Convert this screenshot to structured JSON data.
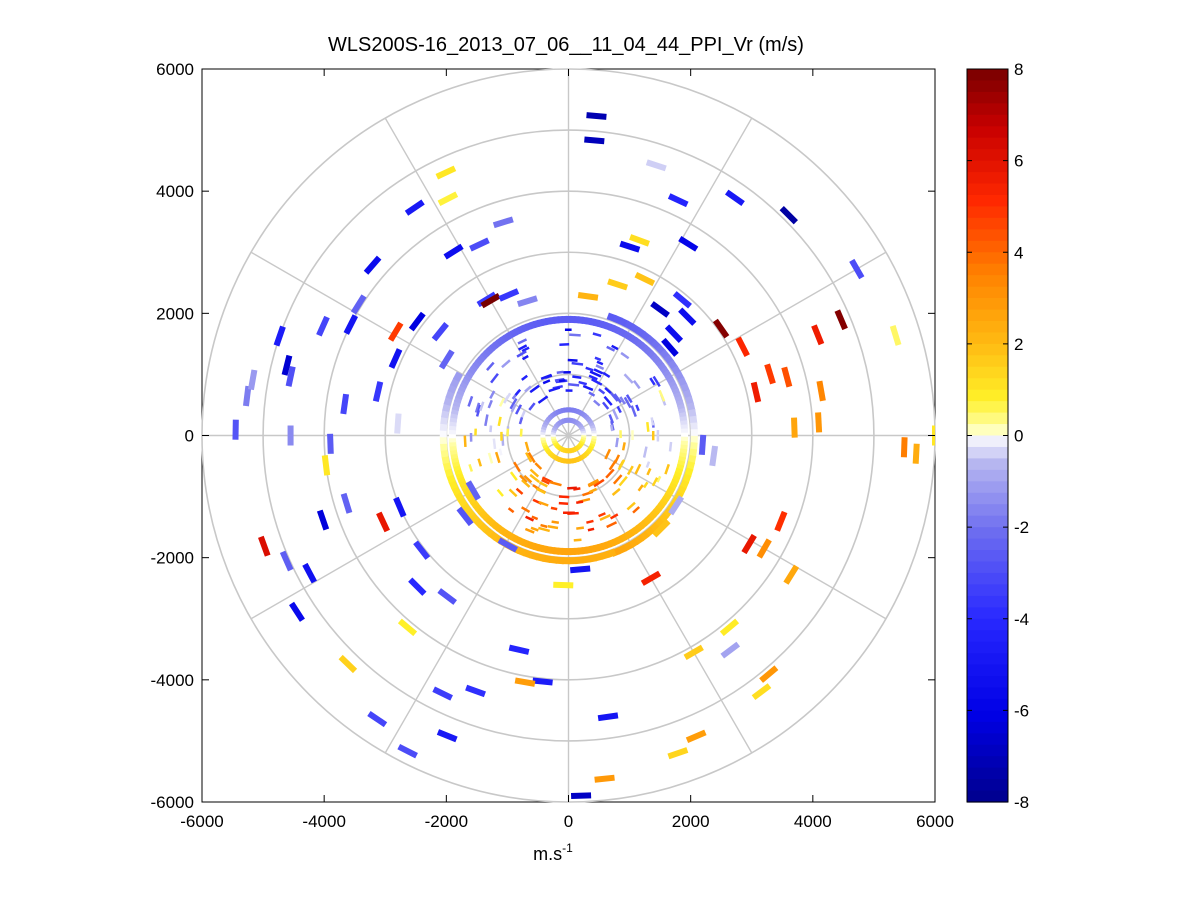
{
  "chart_data": {
    "type": "scatter",
    "subtype": "polar-ppi-radial-velocity",
    "title": "WLS200S-16_2013_07_06__11_04_44_PPI_Vr (m/s)",
    "xlabel_base": "m.s",
    "xlabel_exponent": "-1",
    "ylabel": "",
    "xlim": [
      -6000,
      6000
    ],
    "ylim": [
      -6000,
      6000
    ],
    "x_ticks": [
      -6000,
      -4000,
      -2000,
      0,
      2000,
      4000,
      6000
    ],
    "y_ticks": [
      6000,
      4000,
      2000,
      0,
      -2000,
      -4000,
      -6000
    ],
    "x_tick_labels": [
      "-6000",
      "-4000",
      "-2000",
      "0",
      "2000",
      "4000",
      "6000"
    ],
    "y_tick_labels": [
      "6000",
      "4000",
      "2000",
      "0",
      "-2000",
      "-4000",
      "-6000"
    ],
    "range_rings": [
      1000,
      2000,
      3000,
      4000,
      5000,
      6000
    ],
    "spokes_deg": [
      0,
      30,
      60,
      90,
      120,
      150,
      180,
      210,
      240,
      270,
      300,
      330
    ],
    "colorbar": {
      "min": -8,
      "max": 8,
      "ticks": [
        8,
        6,
        4,
        2,
        0,
        -2,
        -4,
        -6,
        -8
      ],
      "tick_labels": [
        "8",
        "6",
        "4",
        "2",
        "0",
        "-2",
        "-4",
        "-6",
        "-8"
      ]
    },
    "rings": [
      {
        "r": 1900,
        "az_from": 0,
        "az_to": 360,
        "gate_step_deg": 2,
        "pattern": "sine",
        "amplitude": -2.6,
        "phase_deg": 0
      },
      {
        "r": 2060,
        "az_from": 20,
        "az_to": 160,
        "gate_step_deg": 3,
        "pattern": "sine",
        "amplitude": -2.8,
        "phase_deg": 0
      },
      {
        "r": 2050,
        "az_from": 160,
        "az_to": 300,
        "gate_step_deg": 3,
        "pattern": "sine",
        "amplitude": -2.4,
        "phase_deg": 0
      },
      {
        "r": 420,
        "az_from": 0,
        "az_to": 360,
        "gate_step_deg": 6,
        "pattern": "sine",
        "amplitude": -1.8,
        "phase_deg": 0
      },
      {
        "r": 250,
        "az_from": 0,
        "az_to": 360,
        "gate_step_deg": 8,
        "pattern": "sine",
        "amplitude": -1.5,
        "phase_deg": 0
      }
    ],
    "bins": [
      {
        "r": 5250,
        "az": 5,
        "v": -7.2
      },
      {
        "r": 4850,
        "az": 5,
        "v": -7.0
      },
      {
        "r": 4650,
        "az": 18,
        "v": -0.4
      },
      {
        "r": 4250,
        "az": 25,
        "v": -4.2
      },
      {
        "r": 4750,
        "az": 35,
        "v": -4.8
      },
      {
        "r": 5100,
        "az": 45,
        "v": -7.5
      },
      {
        "r": 3250,
        "az": 18,
        "v": -5.5
      },
      {
        "r": 3400,
        "az": 20,
        "v": 1.2
      },
      {
        "r": 3700,
        "az": 32,
        "v": -5.8
      },
      {
        "r": 2900,
        "az": 40,
        "v": -3.8
      },
      {
        "r": 2550,
        "az": 36,
        "v": -6.8
      },
      {
        "r": 3050,
        "az": 55,
        "v": 7.8
      },
      {
        "r": 3200,
        "az": 63,
        "v": 5.2
      },
      {
        "r": 3450,
        "az": 73,
        "v": 4.8
      },
      {
        "r": 3150,
        "az": 77,
        "v": 5.6
      },
      {
        "r": 3700,
        "az": 75,
        "v": 4.4
      },
      {
        "r": 4200,
        "az": 80,
        "v": 3.4
      },
      {
        "r": 4400,
        "az": 68,
        "v": 5.6
      },
      {
        "r": 4850,
        "az": 67,
        "v": 7.8
      },
      {
        "r": 5600,
        "az": 73,
        "v": 0.5
      },
      {
        "r": 5450,
        "az": 60,
        "v": -3.0
      },
      {
        "r": 4100,
        "az": 87,
        "v": 3.0
      },
      {
        "r": 3700,
        "az": 88,
        "v": 2.6
      },
      {
        "r": 5700,
        "az": 93,
        "v": 2.4
      },
      {
        "r": 5500,
        "az": 92,
        "v": 3.6
      },
      {
        "r": 6000,
        "az": 90,
        "v": 1.0
      },
      {
        "r": 3750,
        "az": 112,
        "v": 5.0
      },
      {
        "r": 3450,
        "az": 121,
        "v": 5.8
      },
      {
        "r": 3700,
        "az": 120,
        "v": 3.2
      },
      {
        "r": 4300,
        "az": 122,
        "v": 2.5
      },
      {
        "r": 4100,
        "az": 140,
        "v": 0.9
      },
      {
        "r": 5100,
        "az": 140,
        "v": 3.0
      },
      {
        "r": 5250,
        "az": 143,
        "v": 1.2
      },
      {
        "r": 4400,
        "az": 143,
        "v": -1.0
      },
      {
        "r": 4100,
        "az": 150,
        "v": 1.6
      },
      {
        "r": 4650,
        "az": 172,
        "v": -5.0
      },
      {
        "r": 5650,
        "az": 174,
        "v": 2.9
      },
      {
        "r": 5350,
        "az": 157,
        "v": 2.8
      },
      {
        "r": 5500,
        "az": 161,
        "v": 1.4
      },
      {
        "r": 5900,
        "az": 178,
        "v": -6.8
      },
      {
        "r": 4050,
        "az": 186,
        "v": -4.6
      },
      {
        "r": 3600,
        "az": 193,
        "v": -4.2
      },
      {
        "r": 4450,
        "az": 200,
        "v": -3.8
      },
      {
        "r": 4700,
        "az": 206,
        "v": -3.4
      },
      {
        "r": 5300,
        "az": 202,
        "v": -4.8
      },
      {
        "r": 4100,
        "az": 190,
        "v": 2.8
      },
      {
        "r": 5200,
        "az": 224,
        "v": 1.5
      },
      {
        "r": 4100,
        "az": 220,
        "v": 0.8
      },
      {
        "r": 5800,
        "az": 207,
        "v": -3.0
      },
      {
        "r": 5600,
        "az": 214,
        "v": -3.2
      },
      {
        "r": 3500,
        "az": 225,
        "v": -4.0
      },
      {
        "r": 3300,
        "az": 217,
        "v": -2.8
      },
      {
        "r": 3050,
        "az": 232,
        "v": -3.5
      },
      {
        "r": 3000,
        "az": 247,
        "v": -5.0
      },
      {
        "r": 4250,
        "az": 251,
        "v": -6.3
      },
      {
        "r": 3800,
        "az": 253,
        "v": -2.4
      },
      {
        "r": 5300,
        "az": 250,
        "v": 6.2
      },
      {
        "r": 5050,
        "az": 246,
        "v": -2.5
      },
      {
        "r": 4800,
        "az": 242,
        "v": -5.2
      },
      {
        "r": 5300,
        "az": 237,
        "v": -5.6
      },
      {
        "r": 3350,
        "az": 245,
        "v": 5.8
      },
      {
        "r": 4000,
        "az": 263,
        "v": 1.0
      },
      {
        "r": 3900,
        "az": 268,
        "v": -2.6
      },
      {
        "r": 4550,
        "az": 270,
        "v": -1.5
      },
      {
        "r": 5450,
        "az": 271,
        "v": -2.8
      },
      {
        "r": 5300,
        "az": 277,
        "v": -1.8
      },
      {
        "r": 5250,
        "az": 280,
        "v": -1.2
      },
      {
        "r": 4650,
        "az": 282,
        "v": -2.9
      },
      {
        "r": 3700,
        "az": 278,
        "v": -3.2
      },
      {
        "r": 2800,
        "az": 274,
        "v": -0.3
      },
      {
        "r": 3200,
        "az": 283,
        "v": -3.6
      },
      {
        "r": 4750,
        "az": 284,
        "v": -6.5
      },
      {
        "r": 5000,
        "az": 289,
        "v": -4.6
      },
      {
        "r": 4400,
        "az": 294,
        "v": -3.2
      },
      {
        "r": 4000,
        "az": 297,
        "v": -5.0
      },
      {
        "r": 3100,
        "az": 294,
        "v": -5.2
      },
      {
        "r": 3100,
        "az": 307,
        "v": -6.2
      },
      {
        "r": 3300,
        "az": 301,
        "v": 4.8
      },
      {
        "r": 2700,
        "az": 309,
        "v": -3.2
      },
      {
        "r": 4050,
        "az": 302,
        "v": -2.4
      },
      {
        "r": 4250,
        "az": 311,
        "v": -5.5
      },
      {
        "r": 4500,
        "az": 326,
        "v": -4.8
      },
      {
        "r": 4350,
        "az": 333,
        "v": 0.7
      },
      {
        "r": 3550,
        "az": 328,
        "v": -5.4
      },
      {
        "r": 3650,
        "az": 343,
        "v": -2.0
      },
      {
        "r": 3450,
        "az": 335,
        "v": -3.0
      },
      {
        "r": 2600,
        "az": 329,
        "v": -3.6
      },
      {
        "r": 2550,
        "az": 330,
        "v": 8.0
      },
      {
        "r": 2300,
        "az": 343,
        "v": -1.6
      },
      {
        "r": 4750,
        "az": 335,
        "v": 1.0
      },
      {
        "r": 2850,
        "az": 26,
        "v": 1.8
      },
      {
        "r": 2750,
        "az": 45,
        "v": -5.4
      },
      {
        "r": 2400,
        "az": 46,
        "v": -5.4
      },
      {
        "r": 2200,
        "az": 49,
        "v": -6.2
      },
      {
        "r": 2600,
        "az": 18,
        "v": 1.6
      },
      {
        "r": 2300,
        "az": 8,
        "v": 2.2
      },
      {
        "r": 2100,
        "az": 123,
        "v": -0.8
      },
      {
        "r": 2700,
        "az": 150,
        "v": 5.4
      },
      {
        "r": 2150,
        "az": 135,
        "v": 1.8
      },
      {
        "r": 2200,
        "az": 175,
        "v": -5.0
      },
      {
        "r": 2450,
        "az": 182,
        "v": 0.8
      },
      {
        "r": 2050,
        "az": 209,
        "v": -2.6
      },
      {
        "r": 1800,
        "az": 240,
        "v": -2.4
      },
      {
        "r": 2150,
        "az": 232,
        "v": -2.8
      },
      {
        "r": 2500,
        "az": 337,
        "v": -3.6
      },
      {
        "r": 2350,
        "az": 302,
        "v": -2.4
      },
      {
        "r": 2400,
        "az": 98,
        "v": -0.6
      },
      {
        "r": 2200,
        "az": 94,
        "v": -2.6
      }
    ],
    "inner_gates": [
      {
        "r_from": 700,
        "r_to": 1750,
        "az_from": 0,
        "az_to": 360,
        "count": 190,
        "seed": 42
      }
    ]
  }
}
